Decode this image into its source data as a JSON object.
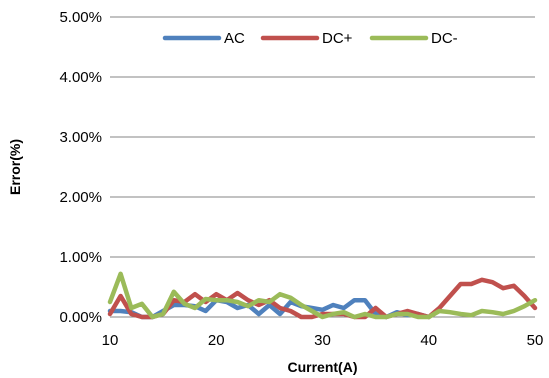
{
  "chart_data": {
    "type": "line",
    "xlabel": "Current(A)",
    "ylabel": "Error(%)",
    "xlim": [
      10,
      50
    ],
    "ylim": [
      0,
      5
    ],
    "x_ticks": [
      "10",
      "20",
      "30",
      "40",
      "50"
    ],
    "y_ticks": [
      "0.00%",
      "1.00%",
      "2.00%",
      "3.00%",
      "4.00%",
      "5.00%"
    ],
    "grid": "horizontal",
    "legend_position": "top-center",
    "series": [
      {
        "name": "AC",
        "color": "#4f81bd",
        "x": [
          10,
          11,
          12,
          13,
          14,
          15,
          16,
          17,
          18,
          19,
          20,
          21,
          22,
          23,
          24,
          25,
          26,
          27,
          28,
          29,
          30,
          31,
          32,
          33,
          34,
          35,
          36,
          37,
          38,
          39,
          40
        ],
        "y": [
          0.1,
          0.1,
          0.08,
          0.0,
          0.0,
          0.1,
          0.2,
          0.2,
          0.18,
          0.1,
          0.28,
          0.25,
          0.15,
          0.2,
          0.05,
          0.2,
          0.05,
          0.25,
          0.18,
          0.15,
          0.12,
          0.2,
          0.15,
          0.28,
          0.28,
          0.05,
          0.0,
          0.08,
          0.03,
          0.05,
          0.0
        ]
      },
      {
        "name": "DC+",
        "color": "#c0504d",
        "x": [
          10,
          11,
          12,
          13,
          14,
          15,
          16,
          17,
          18,
          19,
          20,
          21,
          22,
          23,
          24,
          25,
          26,
          27,
          28,
          29,
          30,
          31,
          32,
          33,
          34,
          35,
          36,
          37,
          38,
          39,
          40,
          41,
          42,
          43,
          44,
          45,
          46,
          47,
          48,
          49,
          50
        ],
        "y": [
          0.05,
          0.35,
          0.05,
          0.0,
          0.0,
          0.05,
          0.28,
          0.25,
          0.38,
          0.25,
          0.38,
          0.28,
          0.4,
          0.28,
          0.2,
          0.28,
          0.15,
          0.1,
          0.0,
          0.0,
          0.05,
          0.05,
          0.05,
          0.0,
          0.0,
          0.15,
          0.0,
          0.05,
          0.1,
          0.05,
          0.0,
          0.15,
          0.35,
          0.55,
          0.55,
          0.62,
          0.58,
          0.48,
          0.52,
          0.35,
          0.15
        ]
      },
      {
        "name": "DC-",
        "color": "#9bbb59",
        "x": [
          10,
          11,
          12,
          13,
          14,
          15,
          16,
          17,
          18,
          19,
          20,
          21,
          22,
          23,
          24,
          25,
          26,
          27,
          28,
          29,
          30,
          31,
          32,
          33,
          34,
          35,
          36,
          37,
          38,
          39,
          40,
          41,
          42,
          43,
          44,
          45,
          46,
          47,
          48,
          49,
          50
        ],
        "y": [
          0.25,
          0.72,
          0.15,
          0.22,
          0.0,
          0.05,
          0.42,
          0.22,
          0.15,
          0.3,
          0.28,
          0.28,
          0.25,
          0.18,
          0.28,
          0.25,
          0.38,
          0.32,
          0.2,
          0.1,
          0.0,
          0.05,
          0.08,
          0.0,
          0.05,
          0.0,
          0.0,
          0.05,
          0.05,
          0.0,
          0.0,
          0.1,
          0.08,
          0.05,
          0.03,
          0.1,
          0.08,
          0.05,
          0.1,
          0.18,
          0.28
        ]
      }
    ]
  }
}
